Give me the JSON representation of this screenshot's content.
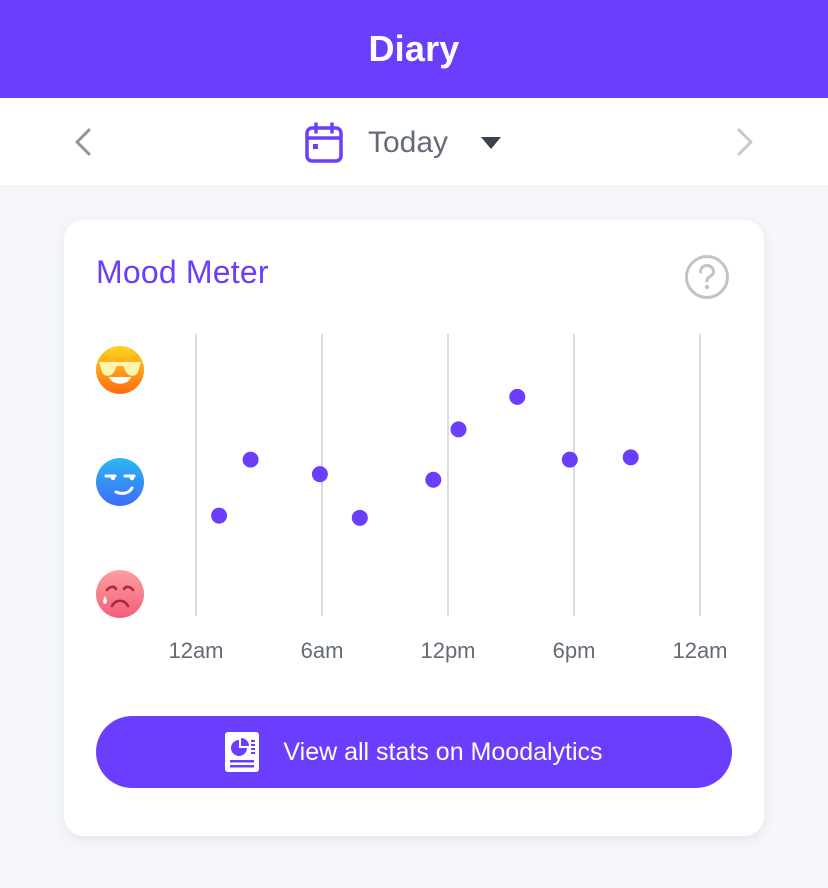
{
  "header": {
    "title": "Diary"
  },
  "date_nav": {
    "label": "Today"
  },
  "card": {
    "title": "Mood Meter",
    "button_label": "View all stats on Moodalytics"
  },
  "icons": {
    "prev": "chevron-left-icon",
    "next": "chevron-right-icon",
    "calendar": "calendar-icon",
    "dropdown": "caret-down-icon",
    "help": "question-mark-icon",
    "stats": "report-icon"
  },
  "colors": {
    "accent": "#6b3dfc",
    "point": "#6b3dfc",
    "gridline": "#d9dde2",
    "tick_text": "#636b75"
  },
  "chart_data": {
    "type": "scatter",
    "title": "Mood Meter",
    "xlabel": "",
    "ylabel": "",
    "x_unit": "hours",
    "xlim": [
      0,
      24
    ],
    "ylim": [
      1,
      3
    ],
    "x_ticks": [
      {
        "value": 0,
        "label": "12am"
      },
      {
        "value": 6,
        "label": "6am"
      },
      {
        "value": 12,
        "label": "12pm"
      },
      {
        "value": 18,
        "label": "6pm"
      },
      {
        "value": 24,
        "label": "12am"
      }
    ],
    "y_levels": [
      {
        "value": 3,
        "name": "cool",
        "icon": "cool-sunglasses-emoji-icon"
      },
      {
        "value": 2,
        "name": "neutral",
        "icon": "smirk-emoji-icon"
      },
      {
        "value": 1,
        "name": "sad",
        "icon": "sad-tear-emoji-icon"
      }
    ],
    "grid": {
      "vertical": true,
      "horizontal": false
    },
    "points": [
      {
        "x": 1.1,
        "y": 1.7
      },
      {
        "x": 2.6,
        "y": 2.2
      },
      {
        "x": 5.9,
        "y": 2.07
      },
      {
        "x": 7.8,
        "y": 1.68
      },
      {
        "x": 11.3,
        "y": 2.02
      },
      {
        "x": 12.5,
        "y": 2.47
      },
      {
        "x": 15.3,
        "y": 2.76
      },
      {
        "x": 17.8,
        "y": 2.2
      },
      {
        "x": 20.7,
        "y": 2.22
      }
    ]
  }
}
